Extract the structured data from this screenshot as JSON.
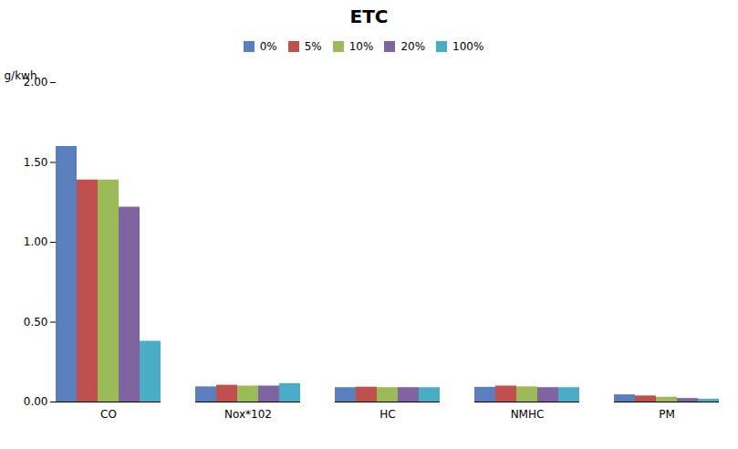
{
  "chart_data": {
    "type": "bar",
    "title": "ETC",
    "ylabel": "g/kwh",
    "categories": [
      "CO",
      "Nox*102",
      "HC",
      "NMHC",
      "PM"
    ],
    "series": [
      {
        "name": "0%",
        "color": "#5b7fbe",
        "values": [
          1.6,
          0.095,
          0.09,
          0.092,
          0.045
        ]
      },
      {
        "name": "5%",
        "color": "#c0504d",
        "values": [
          1.39,
          0.105,
          0.093,
          0.1,
          0.038
        ]
      },
      {
        "name": "10%",
        "color": "#9bbb59",
        "values": [
          1.39,
          0.1,
          0.09,
          0.095,
          0.03
        ]
      },
      {
        "name": "20%",
        "color": "#8064a2",
        "values": [
          1.22,
          0.1,
          0.09,
          0.09,
          0.022
        ]
      },
      {
        "name": "100%",
        "color": "#4bacc6",
        "values": [
          0.38,
          0.115,
          0.09,
          0.09,
          0.018
        ]
      }
    ],
    "ylim": [
      0.0,
      2.0
    ],
    "yticks": [
      {
        "value": 0.0,
        "label": "0.00"
      },
      {
        "value": 0.5,
        "label": "0.50"
      },
      {
        "value": 1.0,
        "label": "1.00"
      },
      {
        "value": 1.5,
        "label": "1.50"
      },
      {
        "value": 2.0,
        "label": "2.00"
      }
    ],
    "legend": "top",
    "grid": false
  }
}
